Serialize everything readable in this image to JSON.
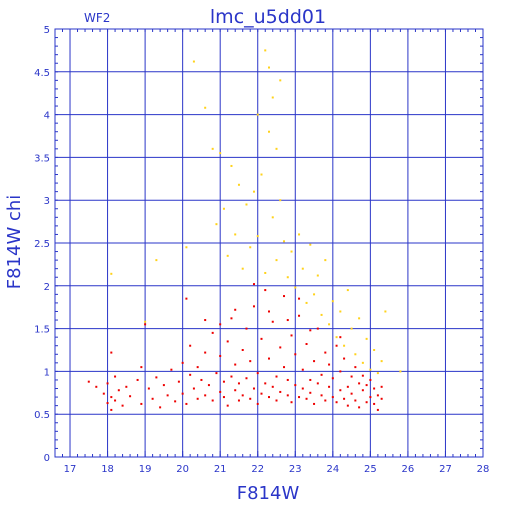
{
  "chart_data": {
    "type": "scatter",
    "title": "lmc_u5dd01",
    "chip_label": "WF2",
    "xlabel": "F814W",
    "ylabel": "F814W  chi",
    "xlim": [
      16.6,
      28
    ],
    "ylim": [
      0,
      5
    ],
    "xticks": [
      17,
      18,
      19,
      20,
      21,
      22,
      23,
      24,
      25,
      26,
      27,
      28
    ],
    "yticks": [
      0,
      0.5,
      1,
      1.5,
      2,
      2.5,
      3,
      3.5,
      4,
      4.5,
      5
    ],
    "grid": true,
    "colors": {
      "axis": "#2a35c8",
      "grid": "#2a35c8",
      "text": "#2a35c8",
      "primary_points": "#ee0000",
      "secondary_points": "#ffd21a"
    },
    "series": [
      {
        "color": "#ee0000",
        "points": [
          [
            17.5,
            0.88
          ],
          [
            17.7,
            0.82
          ],
          [
            17.9,
            0.74
          ],
          [
            18.0,
            0.63
          ],
          [
            18.0,
            0.86
          ],
          [
            18.1,
            0.7
          ],
          [
            18.1,
            0.55
          ],
          [
            18.2,
            0.94
          ],
          [
            18.2,
            0.66
          ],
          [
            18.3,
            0.78
          ],
          [
            18.4,
            0.6
          ],
          [
            18.5,
            0.82
          ],
          [
            18.6,
            0.71
          ],
          [
            18.8,
            0.9
          ],
          [
            18.9,
            0.62
          ],
          [
            19.1,
            0.8
          ],
          [
            19.2,
            0.68
          ],
          [
            19.3,
            0.93
          ],
          [
            19.4,
            0.58
          ],
          [
            19.5,
            0.84
          ],
          [
            19.6,
            0.72
          ],
          [
            19.7,
            1.02
          ],
          [
            19.8,
            0.65
          ],
          [
            19.9,
            0.88
          ],
          [
            20.0,
            1.1
          ],
          [
            20.0,
            0.74
          ],
          [
            20.1,
            0.62
          ],
          [
            20.2,
            0.96
          ],
          [
            20.2,
            1.3
          ],
          [
            20.3,
            0.8
          ],
          [
            20.4,
            0.68
          ],
          [
            20.4,
            1.05
          ],
          [
            20.5,
            0.9
          ],
          [
            20.6,
            0.72
          ],
          [
            20.6,
            1.22
          ],
          [
            20.7,
            0.84
          ],
          [
            20.8,
            0.66
          ],
          [
            20.8,
            1.45
          ],
          [
            20.9,
            0.98
          ],
          [
            21.0,
            0.76
          ],
          [
            21.0,
            1.18
          ],
          [
            21.1,
            0.7
          ],
          [
            21.1,
            0.88
          ],
          [
            21.2,
            1.35
          ],
          [
            21.2,
            0.6
          ],
          [
            21.3,
            0.94
          ],
          [
            21.3,
            1.62
          ],
          [
            21.4,
            0.78
          ],
          [
            21.4,
            1.08
          ],
          [
            21.5,
            0.66
          ],
          [
            21.5,
            0.86
          ],
          [
            21.6,
            1.25
          ],
          [
            21.6,
            0.72
          ],
          [
            21.7,
            1.5
          ],
          [
            21.7,
            0.92
          ],
          [
            21.8,
            0.68
          ],
          [
            21.8,
            1.12
          ],
          [
            21.9,
            0.8
          ],
          [
            21.9,
            1.76
          ],
          [
            22.0,
            0.62
          ],
          [
            22.0,
            0.98
          ],
          [
            22.1,
            1.38
          ],
          [
            22.1,
            0.74
          ],
          [
            22.2,
            0.86
          ],
          [
            22.2,
            1.95
          ],
          [
            22.3,
            0.7
          ],
          [
            22.3,
            1.15
          ],
          [
            22.4,
            0.82
          ],
          [
            22.4,
            1.58
          ],
          [
            22.5,
            0.66
          ],
          [
            22.5,
            0.94
          ],
          [
            22.6,
            1.28
          ],
          [
            22.6,
            0.76
          ],
          [
            22.7,
            1.05
          ],
          [
            22.7,
            1.88
          ],
          [
            22.8,
            0.72
          ],
          [
            22.8,
            0.9
          ],
          [
            22.9,
            1.42
          ],
          [
            22.9,
            0.64
          ],
          [
            23.0,
            0.84
          ],
          [
            23.0,
            1.2
          ],
          [
            23.1,
            0.7
          ],
          [
            23.1,
            1.65
          ],
          [
            23.2,
            0.8
          ],
          [
            23.2,
            1.02
          ],
          [
            23.3,
            0.68
          ],
          [
            23.3,
            1.32
          ],
          [
            23.4,
            0.9
          ],
          [
            23.4,
            0.75
          ],
          [
            23.5,
            1.12
          ],
          [
            23.5,
            0.62
          ],
          [
            23.6,
            0.86
          ],
          [
            23.6,
            1.5
          ],
          [
            23.7,
            0.72
          ],
          [
            23.7,
            0.96
          ],
          [
            23.8,
            1.22
          ],
          [
            23.8,
            0.66
          ],
          [
            23.9,
            0.82
          ],
          [
            23.9,
            1.08
          ],
          [
            24.0,
            0.7
          ],
          [
            24.0,
            0.92
          ],
          [
            24.1,
            1.3
          ],
          [
            24.1,
            0.64
          ],
          [
            24.2,
            0.78
          ],
          [
            24.2,
            1.0
          ],
          [
            24.3,
            0.68
          ],
          [
            24.3,
            1.15
          ],
          [
            24.4,
            0.82
          ],
          [
            24.4,
            0.6
          ],
          [
            24.5,
            0.94
          ],
          [
            24.5,
            0.74
          ],
          [
            24.6,
            1.05
          ],
          [
            24.6,
            0.66
          ],
          [
            24.7,
            0.86
          ],
          [
            24.7,
            0.58
          ],
          [
            24.8,
            0.78
          ],
          [
            24.8,
            0.95
          ],
          [
            24.9,
            0.64
          ],
          [
            24.9,
            0.84
          ],
          [
            25.0,
            0.7
          ],
          [
            25.0,
            0.9
          ],
          [
            25.1,
            0.62
          ],
          [
            25.1,
            0.8
          ],
          [
            25.2,
            0.72
          ],
          [
            25.2,
            0.55
          ],
          [
            25.3,
            0.68
          ],
          [
            25.3,
            0.82
          ],
          [
            21.0,
            1.55
          ],
          [
            21.4,
            1.72
          ],
          [
            22.8,
            1.6
          ],
          [
            23.1,
            1.85
          ],
          [
            20.1,
            1.85
          ],
          [
            21.9,
            2.02
          ],
          [
            22.3,
            1.7
          ],
          [
            23.4,
            1.48
          ],
          [
            24.2,
            1.4
          ],
          [
            20.6,
            1.6
          ],
          [
            18.1,
            1.22
          ],
          [
            18.9,
            1.05
          ],
          [
            19.0,
            1.55
          ]
        ]
      },
      {
        "color": "#ffd21a",
        "points": [
          [
            18.1,
            2.14
          ],
          [
            19.3,
            2.3
          ],
          [
            19.0,
            1.58
          ],
          [
            20.1,
            2.45
          ],
          [
            20.3,
            4.62
          ],
          [
            20.6,
            4.08
          ],
          [
            20.8,
            3.6
          ],
          [
            20.9,
            2.72
          ],
          [
            21.0,
            3.55
          ],
          [
            21.1,
            2.9
          ],
          [
            21.2,
            2.35
          ],
          [
            21.3,
            3.4
          ],
          [
            21.4,
            2.6
          ],
          [
            21.5,
            3.18
          ],
          [
            21.6,
            2.2
          ],
          [
            21.7,
            2.95
          ],
          [
            21.8,
            2.45
          ],
          [
            21.9,
            3.1
          ],
          [
            22.0,
            2.58
          ],
          [
            22.0,
            4.0
          ],
          [
            22.1,
            3.3
          ],
          [
            22.2,
            4.75
          ],
          [
            22.2,
            2.15
          ],
          [
            22.3,
            4.55
          ],
          [
            22.3,
            3.8
          ],
          [
            22.4,
            4.2
          ],
          [
            22.4,
            2.8
          ],
          [
            22.5,
            3.6
          ],
          [
            22.5,
            2.3
          ],
          [
            22.6,
            4.4
          ],
          [
            22.6,
            3.0
          ],
          [
            22.7,
            2.52
          ],
          [
            22.8,
            2.1
          ],
          [
            22.9,
            2.4
          ],
          [
            23.0,
            1.98
          ],
          [
            23.1,
            2.6
          ],
          [
            23.2,
            2.2
          ],
          [
            23.3,
            1.8
          ],
          [
            23.4,
            2.48
          ],
          [
            23.5,
            1.9
          ],
          [
            23.6,
            2.12
          ],
          [
            23.7,
            1.66
          ],
          [
            23.8,
            2.3
          ],
          [
            23.9,
            1.55
          ],
          [
            24.0,
            1.82
          ],
          [
            24.1,
            1.4
          ],
          [
            24.2,
            1.7
          ],
          [
            24.3,
            1.3
          ],
          [
            24.4,
            1.95
          ],
          [
            24.5,
            1.5
          ],
          [
            24.6,
            1.2
          ],
          [
            24.7,
            1.62
          ],
          [
            24.8,
            1.1
          ],
          [
            24.9,
            1.38
          ],
          [
            25.0,
            1.02
          ],
          [
            25.1,
            1.25
          ],
          [
            25.2,
            0.98
          ],
          [
            25.3,
            1.12
          ],
          [
            25.4,
            1.7
          ],
          [
            25.8,
            1.0
          ]
        ]
      }
    ]
  }
}
